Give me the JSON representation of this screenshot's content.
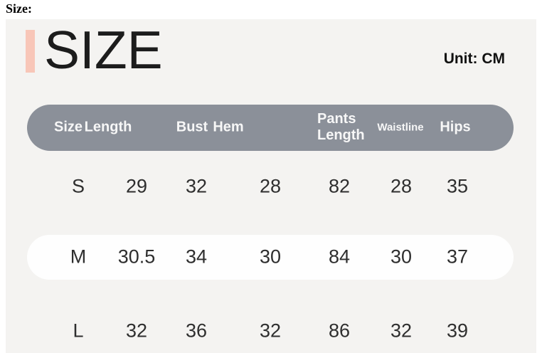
{
  "page": {
    "field_label": "Size:"
  },
  "panel": {
    "title": "SIZE",
    "unit_label": "Unit: CM"
  },
  "chart_data": {
    "type": "table",
    "title": "SIZE",
    "unit": "CM",
    "columns": [
      "Size",
      "Length",
      "Bust",
      "Hem",
      "Pants Length",
      "Waistline",
      "Hips"
    ],
    "rows": [
      [
        "S",
        "29",
        "32",
        "28",
        "82",
        "28",
        "35"
      ],
      [
        "M",
        "30.5",
        "34",
        "30",
        "84",
        "30",
        "37"
      ],
      [
        "L",
        "32",
        "36",
        "32",
        "86",
        "32",
        "39"
      ]
    ],
    "highlighted_row": "M"
  },
  "colors": {
    "accent": "#f8c6b8",
    "panel-bg": "#f4f3f1",
    "header-bg": "#8b9099",
    "header-text": "#f7f7f7",
    "row-highlight": "#fefefe",
    "data-text": "#2e2e2e",
    "title-text": "#1c1c1c"
  }
}
